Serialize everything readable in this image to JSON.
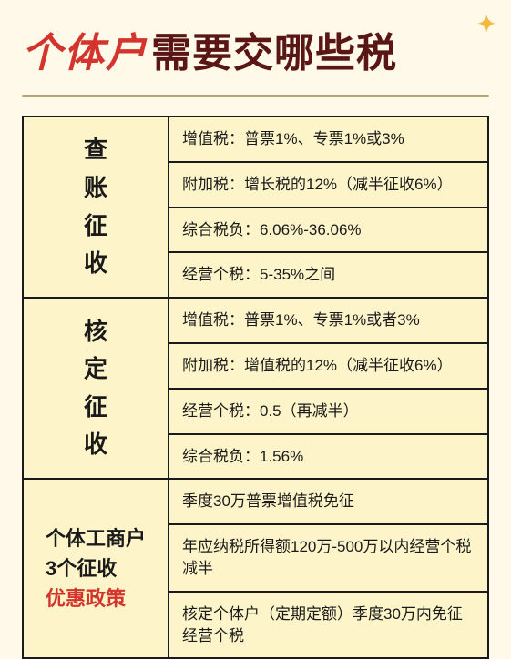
{
  "colors": {
    "page_bg": "#fef9e8",
    "table_bg": "#fdf5c9",
    "border": "#1a1a1a",
    "title_red": "#d4342e",
    "title_dark": "#5a1515",
    "underline": "#b5a572",
    "text": "#1a1a1a",
    "sparkle": "#f5b942"
  },
  "typography": {
    "title_fontsize": 44,
    "label_fontsize": 26,
    "row_fontsize": 17,
    "policy_fontsize": 22
  },
  "header": {
    "title_part1": "个体户",
    "title_part2": "需要交哪些税"
  },
  "sections": [
    {
      "label_chars": [
        "查",
        "账",
        "征",
        "收"
      ],
      "rows": [
        "增值税：普票1%、专票1%或3%",
        "附加税：增长税的12%（减半征收6%）",
        "综合税负：6.06%-36.06%",
        "经营个税：5-35%之间"
      ]
    },
    {
      "label_chars": [
        "核",
        "定",
        "征",
        "收"
      ],
      "rows": [
        "增值税：普票1%、专票1%或者3%",
        "附加税：增值税的12%（减半征收6%）",
        "经营个税：0.5（再减半）",
        "综合税负：1.56%"
      ]
    }
  ],
  "policy": {
    "label_line1": "个体工商户",
    "label_line2": "3个征收",
    "label_line3": "优惠政策",
    "rows": [
      "季度30万普票增值税免征",
      "年应纳税所得额120万-500万以内经营个税减半",
      "核定个体户（定期定额）季度30万内免征经营个税"
    ]
  }
}
